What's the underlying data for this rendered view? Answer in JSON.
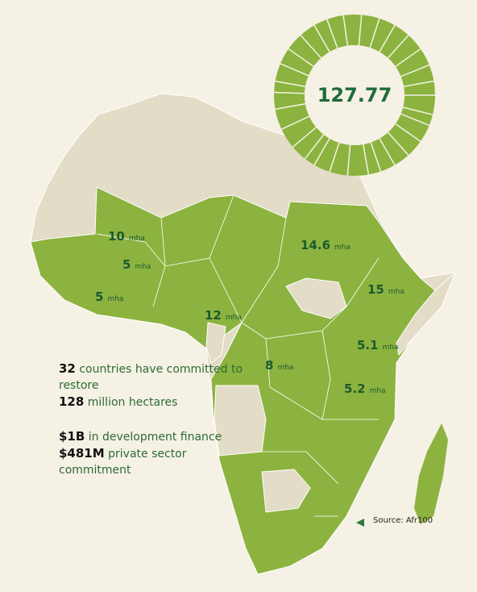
{
  "donut": {
    "total": "127.77"
  },
  "map_labels": [
    {
      "value": "10",
      "unit": "mha"
    },
    {
      "value": "5",
      "unit": "mha"
    },
    {
      "value": "5",
      "unit": "mha"
    },
    {
      "value": "14.6",
      "unit": "mha"
    },
    {
      "value": "15",
      "unit": "mha"
    },
    {
      "value": "12",
      "unit": "mha"
    },
    {
      "value": "8",
      "unit": "mha"
    },
    {
      "value": "5.1",
      "unit": "mha"
    },
    {
      "value": "5.2",
      "unit": "mha"
    }
  ],
  "stats": [
    {
      "bold": "32",
      "text": "countries have committed to restore"
    },
    {
      "bold": "128",
      "text": "million hectares"
    },
    {
      "bold": "$1B",
      "text": "in development finance"
    },
    {
      "bold": "$481M",
      "text": "private sector commitment"
    }
  ],
  "source": "Source: Afr100"
}
